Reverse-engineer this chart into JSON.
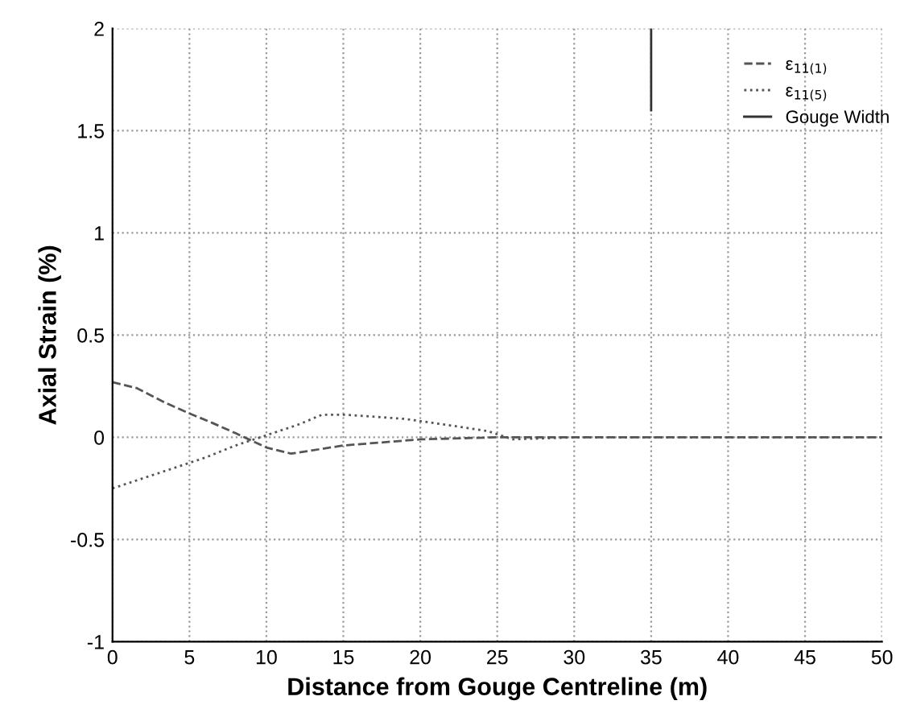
{
  "chart_data": {
    "type": "line",
    "xlabel": "Distance from Gouge Centreline (m)",
    "ylabel": "Axial Strain (%)",
    "xlim": [
      0,
      50
    ],
    "ylim": [
      -1,
      2
    ],
    "xticks": [
      0,
      5,
      10,
      15,
      20,
      25,
      30,
      35,
      40,
      45,
      50
    ],
    "yticks": [
      -1,
      -0.5,
      0,
      0.5,
      1,
      1.5,
      2
    ],
    "grid": true,
    "legend": "top right",
    "series": [
      {
        "name": "ε$_{11(1)}$",
        "color": "#555555",
        "line_style": "dashed",
        "x": [
          0,
          1.6,
          3.4,
          4.9,
          6.5,
          8,
          10,
          11.6,
          15,
          20,
          25,
          30,
          35,
          40,
          45,
          50
        ],
        "values": [
          0.27,
          0.24,
          0.17,
          0.12,
          0.07,
          0.02,
          -0.05,
          -0.08,
          -0.04,
          -0.01,
          0,
          0,
          0,
          0,
          0,
          0
        ]
      },
      {
        "name": "ε$_{11(5)}$",
        "color": "#555555",
        "line_style": "dotted",
        "x": [
          0,
          2,
          4,
          6,
          8,
          10,
          12,
          13.6,
          15.2,
          19,
          21.8,
          24.4,
          26,
          30,
          35,
          40,
          45,
          50
        ],
        "values": [
          -0.25,
          -0.2,
          -0.15,
          -0.1,
          -0.04,
          0.01,
          0.06,
          0.11,
          0.11,
          0.09,
          0.06,
          0.03,
          -0.01,
          0,
          0,
          0,
          0,
          0
        ]
      },
      {
        "name": "Gouge Width",
        "color": "#333333",
        "line_style": "solid",
        "x": [
          35,
          35
        ],
        "values": [
          1.6,
          2
        ]
      }
    ]
  }
}
